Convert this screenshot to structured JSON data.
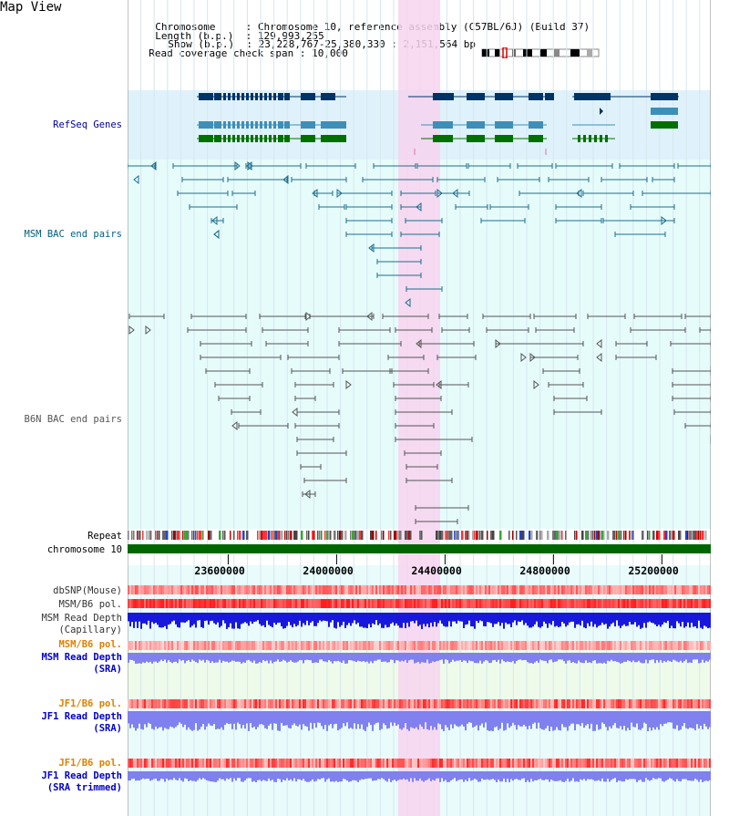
{
  "view": {
    "title": "Map View"
  },
  "info": [
    {
      "key": "Chromosome",
      "value": "Chromosome 10, reference assembly (C57BL/6J) (Build 37)"
    },
    {
      "key": "Length (b.p.)",
      "value": "129,993,255"
    },
    {
      "key": "Show (b.p.)",
      "value": "23,228,767-25,380,330 : 2,151,564 bp"
    },
    {
      "key": "Read coverage check span",
      "value": "10,000"
    }
  ],
  "tracks": {
    "refseq": {
      "label": "RefSeq Genes",
      "color": "#000099"
    },
    "msm_bac": {
      "label": "MSM BAC end pairs",
      "color": "#006080"
    },
    "b6n_bac": {
      "label": "B6N BAC end pairs",
      "color": "#555555"
    },
    "repeat": {
      "label": "Repeat"
    },
    "chromosome": {
      "label": "chromosome 10"
    },
    "dbsnp": {
      "label": "dbSNP(Mouse)"
    },
    "msm_b6_pol": {
      "label": "MSM/B6 pol."
    },
    "msm_depth_cap": {
      "line1": "MSM Read Depth",
      "line2": "(Capillary)"
    },
    "msm_b6_pol_sra": {
      "label": "MSM/B6 pol.",
      "color": "#e08000"
    },
    "msm_depth_sra": {
      "line1": "MSM Read Depth",
      "line2": "(SRA)",
      "color": "#0000cc"
    },
    "jf1_b6_pol": {
      "label": "JF1/B6 pol.",
      "color": "#e08000"
    },
    "jf1_depth_sra": {
      "line1": "JF1 Read Depth",
      "line2": "(SRA)",
      "color": "#0000cc"
    },
    "jf1_b6_pol_trim": {
      "label": "JF1/B6 pol.",
      "color": "#e08000"
    },
    "jf1_depth_trim": {
      "line1": "JF1 Read Depth",
      "line2": "(SRA trimmed)",
      "color": "#0000cc"
    }
  },
  "scale": {
    "range_bp": [
      23228767,
      25380330
    ],
    "ticks": [
      "23600000",
      "24000000",
      "24400000",
      "24800000",
      "25200000"
    ],
    "tick_values": [
      23600000,
      24000000,
      24400000,
      24800000,
      25200000
    ]
  },
  "colors": {
    "refseq_bg": "#dff2fb",
    "lower_bg": "#e6fcfb",
    "highlight": "#f7d3ef",
    "gene_dark": "#003366",
    "gene_mid": "#3d8fb8",
    "gene_green": "#007000",
    "msm_pair": "#1c6e8c",
    "b6n_pair": "#555555",
    "depth_blue": "#1818dd",
    "depth_light": "#8080ee",
    "chrom_green": "#006600"
  }
}
